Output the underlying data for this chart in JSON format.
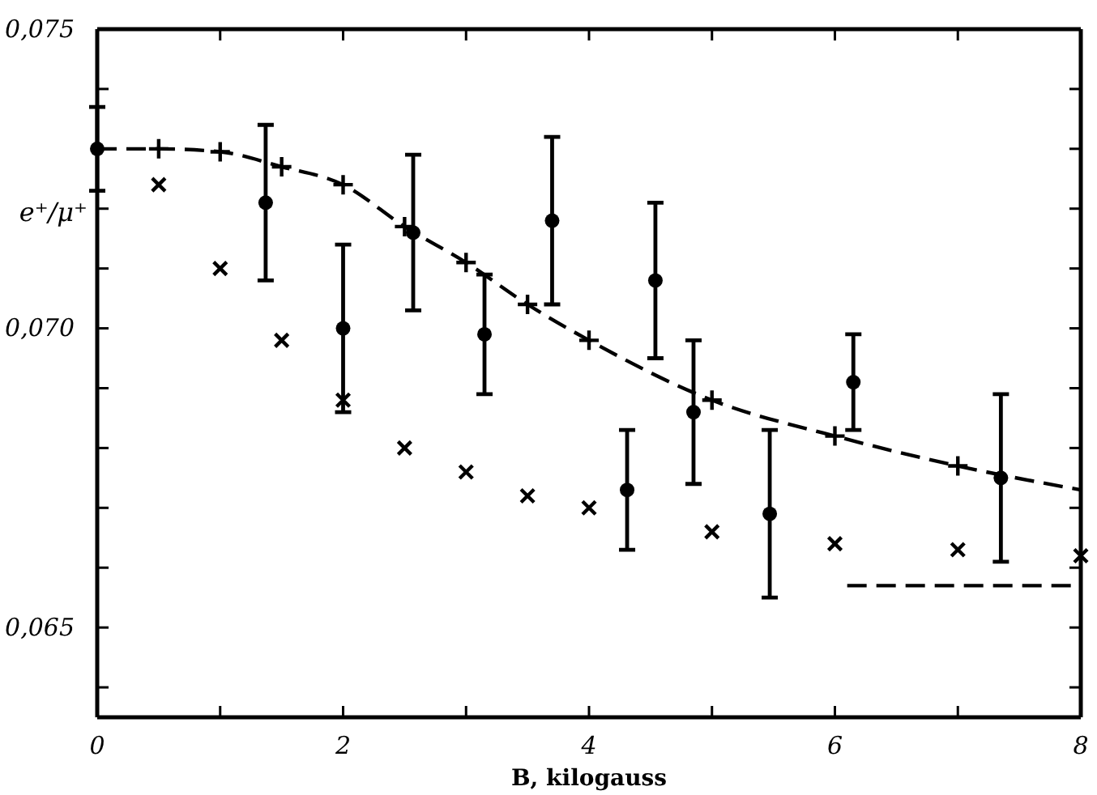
{
  "chart_data": {
    "type": "scatter",
    "xlabel": "B, kilogauss",
    "ylabel": "e⁺/μ⁺",
    "xlim": [
      0,
      8
    ],
    "ylim": [
      0.0635,
      0.075
    ],
    "xticks": [
      0,
      {
        "value": 1,
        "label": null
      },
      2,
      {
        "value": 3,
        "label": null
      },
      4,
      {
        "value": 5,
        "label": null
      },
      6,
      {
        "value": 7,
        "label": null
      },
      8
    ],
    "yticks": [
      {
        "value": 0.064,
        "label": null
      },
      {
        "value": 0.065,
        "label": "0,065"
      },
      {
        "value": 0.066,
        "label": null
      },
      {
        "value": 0.067,
        "label": null
      },
      {
        "value": 0.068,
        "label": null
      },
      {
        "value": 0.069,
        "label": null
      },
      {
        "value": 0.07,
        "label": "0,070"
      },
      {
        "value": 0.071,
        "label": null
      },
      {
        "value": 0.072,
        "label": null
      },
      {
        "value": 0.073,
        "label": null
      },
      {
        "value": 0.074,
        "label": null
      },
      {
        "value": 0.075,
        "label": "0,075"
      }
    ],
    "grid": false,
    "series": [
      {
        "marker": "circle",
        "color": "#000000",
        "x": [
          0,
          1.37,
          2.0,
          2.57,
          3.15,
          3.7,
          4.31,
          4.54,
          4.85,
          5.47,
          6.15,
          7.35
        ],
        "values": [
          0.073,
          0.0721,
          0.07,
          0.0716,
          0.0699,
          0.0718,
          0.0673,
          0.0708,
          0.0686,
          0.0669,
          0.0691,
          0.0675
        ],
        "errors": [
          0.0007,
          0.0013,
          0.0014,
          0.0013,
          0.001,
          0.0014,
          0.001,
          0.0013,
          0.0012,
          0.0014,
          0.0008,
          0.0014
        ]
      },
      {
        "marker": "cross",
        "color": "#000000",
        "x": [
          0.5,
          1,
          1.5,
          2,
          2.5,
          3,
          3.5,
          4,
          5,
          6,
          7,
          8
        ],
        "values": [
          0.0724,
          0.071,
          0.0698,
          0.0688,
          0.068,
          0.0676,
          0.0672,
          0.067,
          0.0666,
          0.0664,
          0.0663,
          0.0662
        ]
      },
      {
        "type": "line",
        "marker": "cross",
        "line_style": "dashed",
        "color": "#000000",
        "x": [
          0,
          0.5,
          1,
          1.5,
          2,
          2.5,
          3,
          3.5,
          4,
          5,
          6,
          7,
          8
        ],
        "values": [
          0.073,
          0.073,
          0.07295,
          0.0727,
          0.0724,
          0.0717,
          0.0711,
          0.0704,
          0.0698,
          0.0688,
          0.0682,
          0.0677,
          0.0673
        ]
      },
      {
        "type": "line",
        "marker": "none",
        "line_style": "dashed",
        "color": "#000000",
        "x": [
          6.1,
          8
        ],
        "values": [
          0.0657,
          0.0657
        ]
      }
    ]
  }
}
